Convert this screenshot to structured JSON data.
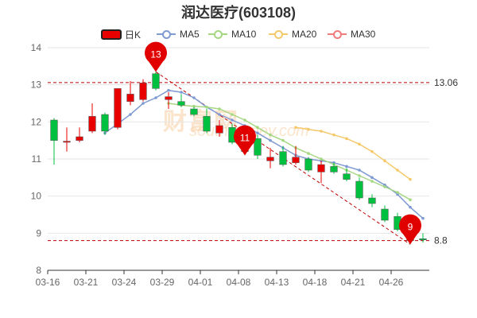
{
  "title": "润达医疗(603108)",
  "watermark": "财富网",
  "watermark_sub": "southmoney.com",
  "legend": [
    {
      "name": "日K",
      "icon": "candle-icon",
      "color": "#e80000"
    },
    {
      "name": "MA5",
      "icon": "line-dot-icon",
      "color": "#7f9ad3"
    },
    {
      "name": "MA10",
      "icon": "line-dot-icon",
      "color": "#a5d781"
    },
    {
      "name": "MA20",
      "icon": "line-dot-icon",
      "color": "#f5c96a"
    },
    {
      "name": "MA30",
      "icon": "line-dot-icon",
      "color": "#ef7b7b"
    }
  ],
  "chart_data": {
    "type": "candlestick",
    "ylim": [
      8,
      14
    ],
    "yticks": [
      "8",
      "9",
      "10",
      "11",
      "12",
      "13",
      "14"
    ],
    "xtick_labels": [
      "03-16",
      "03-21",
      "03-24",
      "03-29",
      "04-01",
      "04-08",
      "04-13",
      "04-18",
      "04-21",
      "04-26"
    ],
    "xtick_indices": [
      0,
      3,
      6,
      9,
      12,
      15,
      18,
      21,
      24,
      27
    ],
    "colors": {
      "up": "#e80000",
      "down": "#00c040"
    },
    "candles": [
      {
        "o": 12.05,
        "c": 11.5,
        "h": 12.1,
        "l": 10.85
      },
      {
        "o": 11.45,
        "c": 11.48,
        "h": 11.85,
        "l": 11.2
      },
      {
        "o": 11.5,
        "c": 11.6,
        "h": 11.85,
        "l": 11.45
      },
      {
        "o": 11.75,
        "c": 12.15,
        "h": 12.5,
        "l": 11.7
      },
      {
        "o": 12.2,
        "c": 11.75,
        "h": 12.25,
        "l": 11.65
      },
      {
        "o": 11.85,
        "c": 12.9,
        "h": 12.9,
        "l": 11.8
      },
      {
        "o": 12.55,
        "c": 12.75,
        "h": 13.1,
        "l": 12.45
      },
      {
        "o": 12.6,
        "c": 13.05,
        "h": 13.15,
        "l": 12.55
      },
      {
        "o": 13.3,
        "c": 12.9,
        "h": 13.35,
        "l": 12.85
      },
      {
        "o": 12.6,
        "c": 12.68,
        "h": 12.8,
        "l": 12.35
      },
      {
        "o": 12.55,
        "c": 12.45,
        "h": 12.75,
        "l": 12.4
      },
      {
        "o": 12.35,
        "c": 12.2,
        "h": 12.4,
        "l": 12.15
      },
      {
        "o": 12.15,
        "c": 11.75,
        "h": 12.35,
        "l": 11.7
      },
      {
        "o": 11.7,
        "c": 11.9,
        "h": 12.05,
        "l": 11.6
      },
      {
        "o": 11.85,
        "c": 11.45,
        "h": 11.95,
        "l": 11.4
      },
      {
        "o": 11.5,
        "c": 11.2,
        "h": 11.6,
        "l": 11.1
      },
      {
        "o": 11.55,
        "c": 11.1,
        "h": 11.65,
        "l": 11.0
      },
      {
        "o": 10.95,
        "c": 11.05,
        "h": 11.3,
        "l": 10.75
      },
      {
        "o": 11.2,
        "c": 10.85,
        "h": 11.35,
        "l": 10.8
      },
      {
        "o": 10.9,
        "c": 11.05,
        "h": 11.35,
        "l": 10.85
      },
      {
        "o": 11.0,
        "c": 10.7,
        "h": 11.05,
        "l": 10.65
      },
      {
        "o": 10.65,
        "c": 10.85,
        "h": 10.95,
        "l": 10.35
      },
      {
        "o": 10.8,
        "c": 10.65,
        "h": 10.9,
        "l": 10.6
      },
      {
        "o": 10.6,
        "c": 10.45,
        "h": 10.75,
        "l": 10.4
      },
      {
        "o": 10.4,
        "c": 9.95,
        "h": 10.5,
        "l": 9.9
      },
      {
        "o": 9.95,
        "c": 9.8,
        "h": 10.05,
        "l": 9.7
      },
      {
        "o": 9.65,
        "c": 9.35,
        "h": 9.75,
        "l": 9.3
      },
      {
        "o": 9.45,
        "c": 9.1,
        "h": 9.55,
        "l": 9.05
      },
      {
        "o": 9.0,
        "c": 8.8,
        "h": 9.1,
        "l": 8.7
      },
      {
        "o": 8.85,
        "c": 8.82,
        "h": 9.0,
        "l": 8.75
      }
    ],
    "ma": [
      {
        "name": "MA5",
        "color": "#7f9ad3",
        "start": 4,
        "values": [
          11.7,
          11.95,
          12.2,
          12.5,
          12.65,
          12.85,
          12.8,
          12.65,
          12.4,
          12.2,
          12.05,
          11.9,
          11.7,
          11.5,
          11.3,
          11.1,
          11.0,
          10.95,
          10.9,
          10.8,
          10.7,
          10.5,
          10.3,
          10.05,
          9.7,
          9.4
        ]
      },
      {
        "name": "MA10",
        "color": "#a5d781",
        "start": 9,
        "values": [
          12.5,
          12.45,
          12.42,
          12.4,
          12.35,
          12.2,
          12.05,
          11.85,
          11.65,
          11.5,
          11.3,
          11.15,
          11.0,
          10.85,
          10.7,
          10.55,
          10.4,
          10.25,
          10.1,
          9.9
        ]
      },
      {
        "name": "MA20",
        "color": "#f5c96a",
        "start": 19,
        "values": [
          11.85,
          11.8,
          11.75,
          11.65,
          11.55,
          11.4,
          11.2,
          10.95,
          10.7,
          10.45
        ]
      }
    ],
    "reference_lines": [
      {
        "value": 13.06,
        "label": "13.06"
      },
      {
        "value": 8.8,
        "label": "8.8"
      }
    ],
    "markers": [
      {
        "index": 8,
        "value": 13.35,
        "label": "13"
      },
      {
        "index": 15,
        "value": 11.1,
        "label": "11"
      },
      {
        "index": 28,
        "value": 8.7,
        "label": "9"
      }
    ],
    "trend_line": {
      "from_index": 8,
      "from_value": 13.35,
      "to_index": 28,
      "to_value": 8.7
    }
  }
}
